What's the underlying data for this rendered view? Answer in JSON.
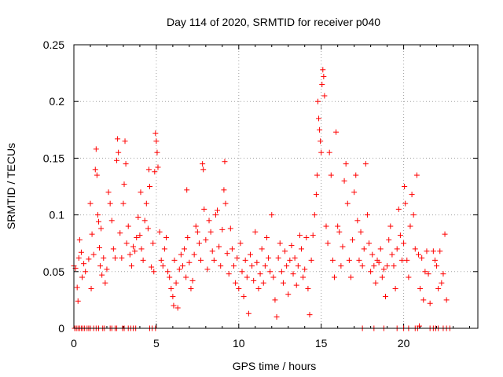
{
  "chart_data": {
    "type": "scatter",
    "title": "Day 114 of 2020, SRMTID for receiver p040",
    "xlabel": "GPS time / hours",
    "ylabel": "SRMTID / TECUs",
    "xlim": [
      0,
      24.5
    ],
    "ylim": [
      0,
      0.25
    ],
    "xticks": [
      0,
      5,
      10,
      15,
      20
    ],
    "xtick_labels": [
      "0",
      "5",
      "10",
      "15",
      "20"
    ],
    "yticks": [
      0,
      0.05,
      0.1,
      0.15,
      0.2,
      0.25
    ],
    "ytick_labels": [
      "0",
      "0.05",
      "0.1",
      "0.15",
      "0.2",
      "0.25"
    ],
    "grid": true,
    "marker": "+",
    "color": "#ff0000",
    "series": [
      {
        "name": "SRMTID",
        "points": [
          [
            0.0,
            0.055
          ],
          [
            0.1,
            0.053
          ],
          [
            0.2,
            0.036
          ],
          [
            0.25,
            0.024
          ],
          [
            0.3,
            0.062
          ],
          [
            0.35,
            0.078
          ],
          [
            0.45,
            0.067
          ],
          [
            0.5,
            0.045
          ],
          [
            0.6,
            0.057
          ],
          [
            0.7,
            0.05
          ],
          [
            0.9,
            0.061
          ],
          [
            1.0,
            0.11
          ],
          [
            1.05,
            0.035
          ],
          [
            1.1,
            0.083
          ],
          [
            1.2,
            0.065
          ],
          [
            1.3,
            0.14
          ],
          [
            1.35,
            0.158
          ],
          [
            1.4,
            0.135
          ],
          [
            1.45,
            0.1
          ],
          [
            1.5,
            0.094
          ],
          [
            1.55,
            0.071
          ],
          [
            1.6,
            0.055
          ],
          [
            1.65,
            0.088
          ],
          [
            1.7,
            0.047
          ],
          [
            1.8,
            0.062
          ],
          [
            1.9,
            0.04
          ],
          [
            2.0,
            0.052
          ],
          [
            2.1,
            0.12
          ],
          [
            2.2,
            0.11
          ],
          [
            2.3,
            0.095
          ],
          [
            2.4,
            0.07
          ],
          [
            2.5,
            0.062
          ],
          [
            2.6,
            0.148
          ],
          [
            2.65,
            0.167
          ],
          [
            2.7,
            0.155
          ],
          [
            2.8,
            0.084
          ],
          [
            2.9,
            0.062
          ],
          [
            3.0,
            0.11
          ],
          [
            3.05,
            0.127
          ],
          [
            3.1,
            0.165
          ],
          [
            3.15,
            0.145
          ],
          [
            3.2,
            0.075
          ],
          [
            3.3,
            0.09
          ],
          [
            3.4,
            0.065
          ],
          [
            3.5,
            0.055
          ],
          [
            3.6,
            0.072
          ],
          [
            3.7,
            0.068
          ],
          [
            3.8,
            0.08
          ],
          [
            3.9,
            0.098
          ],
          [
            4.0,
            0.082
          ],
          [
            4.05,
            0.12
          ],
          [
            4.1,
            0.07
          ],
          [
            4.2,
            0.06
          ],
          [
            4.3,
            0.095
          ],
          [
            4.4,
            0.11
          ],
          [
            4.5,
            0.088
          ],
          [
            4.55,
            0.14
          ],
          [
            4.6,
            0.125
          ],
          [
            4.7,
            0.054
          ],
          [
            4.8,
            0.075
          ],
          [
            4.85,
            0.05
          ],
          [
            4.9,
            0.138
          ],
          [
            4.95,
            0.172
          ],
          [
            5.0,
            0.165
          ],
          [
            5.05,
            0.155
          ],
          [
            5.1,
            0.142
          ],
          [
            5.2,
            0.085
          ],
          [
            5.3,
            0.06
          ],
          [
            5.4,
            0.055
          ],
          [
            5.5,
            0.07
          ],
          [
            5.6,
            0.08
          ],
          [
            5.7,
            0.05
          ],
          [
            5.8,
            0.045
          ],
          [
            5.9,
            0.035
          ],
          [
            6.0,
            0.028
          ],
          [
            6.05,
            0.02
          ],
          [
            6.1,
            0.06
          ],
          [
            6.2,
            0.04
          ],
          [
            6.3,
            0.018
          ],
          [
            6.4,
            0.052
          ],
          [
            6.5,
            0.065
          ],
          [
            6.6,
            0.055
          ],
          [
            6.7,
            0.07
          ],
          [
            6.8,
            0.045
          ],
          [
            6.85,
            0.122
          ],
          [
            6.9,
            0.08
          ],
          [
            7.0,
            0.058
          ],
          [
            7.1,
            0.035
          ],
          [
            7.2,
            0.042
          ],
          [
            7.3,
            0.065
          ],
          [
            7.4,
            0.09
          ],
          [
            7.5,
            0.085
          ],
          [
            7.6,
            0.075
          ],
          [
            7.7,
            0.06
          ],
          [
            7.8,
            0.145
          ],
          [
            7.85,
            0.14
          ],
          [
            7.9,
            0.105
          ],
          [
            8.0,
            0.078
          ],
          [
            8.1,
            0.052
          ],
          [
            8.2,
            0.095
          ],
          [
            8.3,
            0.085
          ],
          [
            8.4,
            0.068
          ],
          [
            8.5,
            0.06
          ],
          [
            8.6,
            0.1
          ],
          [
            8.7,
            0.104
          ],
          [
            8.8,
            0.072
          ],
          [
            8.9,
            0.055
          ],
          [
            9.0,
            0.087
          ],
          [
            9.1,
            0.122
          ],
          [
            9.15,
            0.147
          ],
          [
            9.2,
            0.11
          ],
          [
            9.3,
            0.066
          ],
          [
            9.4,
            0.048
          ],
          [
            9.5,
            0.088
          ],
          [
            9.6,
            0.07
          ],
          [
            9.7,
            0.055
          ],
          [
            9.8,
            0.04
          ],
          [
            9.9,
            0.062
          ],
          [
            10.0,
            0.035
          ],
          [
            10.1,
            0.075
          ],
          [
            10.2,
            0.05
          ],
          [
            10.3,
            0.028
          ],
          [
            10.4,
            0.06
          ],
          [
            10.5,
            0.045
          ],
          [
            10.6,
            0.013
          ],
          [
            10.7,
            0.065
          ],
          [
            10.8,
            0.055
          ],
          [
            10.9,
            0.042
          ],
          [
            11.0,
            0.085
          ],
          [
            11.1,
            0.058
          ],
          [
            11.2,
            0.035
          ],
          [
            11.3,
            0.048
          ],
          [
            11.4,
            0.07
          ],
          [
            11.5,
            0.04
          ],
          [
            11.6,
            0.055
          ],
          [
            11.7,
            0.08
          ],
          [
            11.8,
            0.062
          ],
          [
            11.9,
            0.05
          ],
          [
            12.0,
            0.1
          ],
          [
            12.1,
            0.045
          ],
          [
            12.2,
            0.025
          ],
          [
            12.3,
            0.01
          ],
          [
            12.4,
            0.062
          ],
          [
            12.5,
            0.075
          ],
          [
            12.6,
            0.05
          ],
          [
            12.7,
            0.04
          ],
          [
            12.8,
            0.068
          ],
          [
            12.9,
            0.055
          ],
          [
            13.0,
            0.03
          ],
          [
            13.1,
            0.06
          ],
          [
            13.2,
            0.073
          ],
          [
            13.3,
            0.048
          ],
          [
            13.4,
            0.062
          ],
          [
            13.5,
            0.038
          ],
          [
            13.6,
            0.055
          ],
          [
            13.7,
            0.082
          ],
          [
            13.8,
            0.07
          ],
          [
            13.9,
            0.045
          ],
          [
            14.0,
            0.052
          ],
          [
            14.1,
            0.08
          ],
          [
            14.2,
            0.035
          ],
          [
            14.3,
            0.012
          ],
          [
            14.4,
            0.06
          ],
          [
            14.5,
            0.082
          ],
          [
            14.6,
            0.1
          ],
          [
            14.7,
            0.118
          ],
          [
            14.75,
            0.135
          ],
          [
            14.8,
            0.2
          ],
          [
            14.85,
            0.185
          ],
          [
            14.9,
            0.175
          ],
          [
            14.95,
            0.165
          ],
          [
            15.0,
            0.155
          ],
          [
            15.05,
            0.215
          ],
          [
            15.1,
            0.228
          ],
          [
            15.15,
            0.222
          ],
          [
            15.2,
            0.205
          ],
          [
            15.3,
            0.09
          ],
          [
            15.4,
            0.075
          ],
          [
            15.5,
            0.155
          ],
          [
            15.6,
            0.135
          ],
          [
            15.7,
            0.06
          ],
          [
            15.8,
            0.045
          ],
          [
            15.9,
            0.173
          ],
          [
            16.0,
            0.09
          ],
          [
            16.1,
            0.085
          ],
          [
            16.2,
            0.055
          ],
          [
            16.3,
            0.072
          ],
          [
            16.4,
            0.13
          ],
          [
            16.5,
            0.145
          ],
          [
            16.6,
            0.11
          ],
          [
            16.7,
            0.06
          ],
          [
            16.8,
            0.045
          ],
          [
            16.9,
            0.078
          ],
          [
            17.0,
            0.12
          ],
          [
            17.1,
            0.135
          ],
          [
            17.2,
            0.095
          ],
          [
            17.3,
            0.06
          ],
          [
            17.4,
            0.085
          ],
          [
            17.5,
            0.055
          ],
          [
            17.6,
            0.07
          ],
          [
            17.7,
            0.145
          ],
          [
            17.8,
            0.1
          ],
          [
            17.9,
            0.075
          ],
          [
            18.0,
            0.05
          ],
          [
            18.1,
            0.065
          ],
          [
            18.2,
            0.055
          ],
          [
            18.3,
            0.04
          ],
          [
            18.4,
            0.06
          ],
          [
            18.5,
            0.058
          ],
          [
            18.6,
            0.07
          ],
          [
            18.7,
            0.045
          ],
          [
            18.8,
            0.052
          ],
          [
            18.9,
            0.028
          ],
          [
            19.0,
            0.055
          ],
          [
            19.1,
            0.078
          ],
          [
            19.2,
            0.09
          ],
          [
            19.3,
            0.065
          ],
          [
            19.4,
            0.055
          ],
          [
            19.5,
            0.035
          ],
          [
            19.6,
            0.07
          ],
          [
            19.7,
            0.105
          ],
          [
            19.8,
            0.082
          ],
          [
            19.9,
            0.06
          ],
          [
            20.0,
            0.075
          ],
          [
            20.05,
            0.125
          ],
          [
            20.1,
            0.11
          ],
          [
            20.2,
            0.06
          ],
          [
            20.3,
            0.045
          ],
          [
            20.4,
            0.09
          ],
          [
            20.5,
            0.118
          ],
          [
            20.6,
            0.1
          ],
          [
            20.7,
            0.07
          ],
          [
            20.8,
            0.135
          ],
          [
            20.9,
            0.065
          ],
          [
            21.0,
            0.035
          ],
          [
            21.1,
            0.062
          ],
          [
            21.2,
            0.025
          ],
          [
            21.3,
            0.05
          ],
          [
            21.4,
            0.068
          ],
          [
            21.5,
            0.048
          ],
          [
            21.6,
            0.022
          ],
          [
            21.8,
            0.068
          ],
          [
            21.9,
            0.06
          ],
          [
            22.0,
            0.055
          ],
          [
            22.1,
            0.035
          ],
          [
            22.2,
            0.068
          ],
          [
            22.3,
            0.04
          ],
          [
            22.4,
            0.048
          ],
          [
            22.5,
            0.083
          ],
          [
            22.6,
            0.025
          ],
          [
            0.05,
            0.0
          ],
          [
            0.15,
            0.0
          ],
          [
            0.25,
            0.0
          ],
          [
            0.35,
            0.0
          ],
          [
            0.45,
            0.0
          ],
          [
            0.55,
            0.0
          ],
          [
            0.65,
            0.0
          ],
          [
            0.8,
            0.0
          ],
          [
            0.9,
            0.0
          ],
          [
            1.0,
            0.0
          ],
          [
            1.2,
            0.0
          ],
          [
            1.35,
            0.0
          ],
          [
            1.5,
            0.0
          ],
          [
            1.75,
            0.0
          ],
          [
            1.85,
            0.0
          ],
          [
            2.2,
            0.0
          ],
          [
            2.3,
            0.0
          ],
          [
            2.5,
            0.0
          ],
          [
            2.6,
            0.0
          ],
          [
            2.95,
            0.0
          ],
          [
            3.05,
            0.0
          ],
          [
            3.3,
            0.0
          ],
          [
            3.45,
            0.0
          ],
          [
            3.6,
            0.0
          ],
          [
            3.75,
            0.0
          ],
          [
            4.6,
            0.0
          ],
          [
            4.75,
            0.0
          ],
          [
            4.95,
            0.0
          ],
          [
            17.5,
            0.0
          ],
          [
            18.2,
            0.0
          ],
          [
            18.8,
            0.0
          ],
          [
            19.6,
            0.0
          ],
          [
            20.0,
            0.0
          ],
          [
            20.3,
            0.0
          ],
          [
            20.7,
            0.0
          ],
          [
            20.85,
            0.0
          ],
          [
            20.95,
            0.002
          ],
          [
            21.6,
            0.0
          ],
          [
            21.8,
            0.0
          ],
          [
            21.95,
            0.0
          ],
          [
            22.1,
            0.0
          ],
          [
            22.4,
            0.0
          ],
          [
            22.6,
            0.0
          ],
          [
            22.8,
            0.0
          ]
        ]
      }
    ]
  }
}
